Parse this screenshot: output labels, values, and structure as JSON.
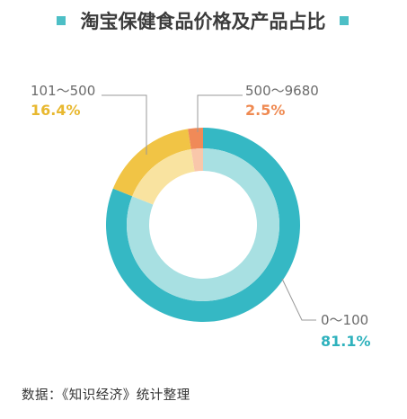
{
  "chart_data": {
    "type": "pie",
    "title": "淘宝保健食品价格及产品占比",
    "categories": [
      "0～100",
      "101～500",
      "500～9680"
    ],
    "values": [
      81.1,
      16.4,
      2.5
    ],
    "value_labels": [
      "81.1%",
      "16.4%",
      "2.5%"
    ],
    "colors": [
      "#35b8c4",
      "#f1c445",
      "#f08a58"
    ],
    "inner_colors": [
      "#a8e0e2",
      "#f9e3a0",
      "#f9c7aa"
    ],
    "title_marker_color": "#4dbfc6"
  },
  "source": "数据：《知识经济》统计整理"
}
